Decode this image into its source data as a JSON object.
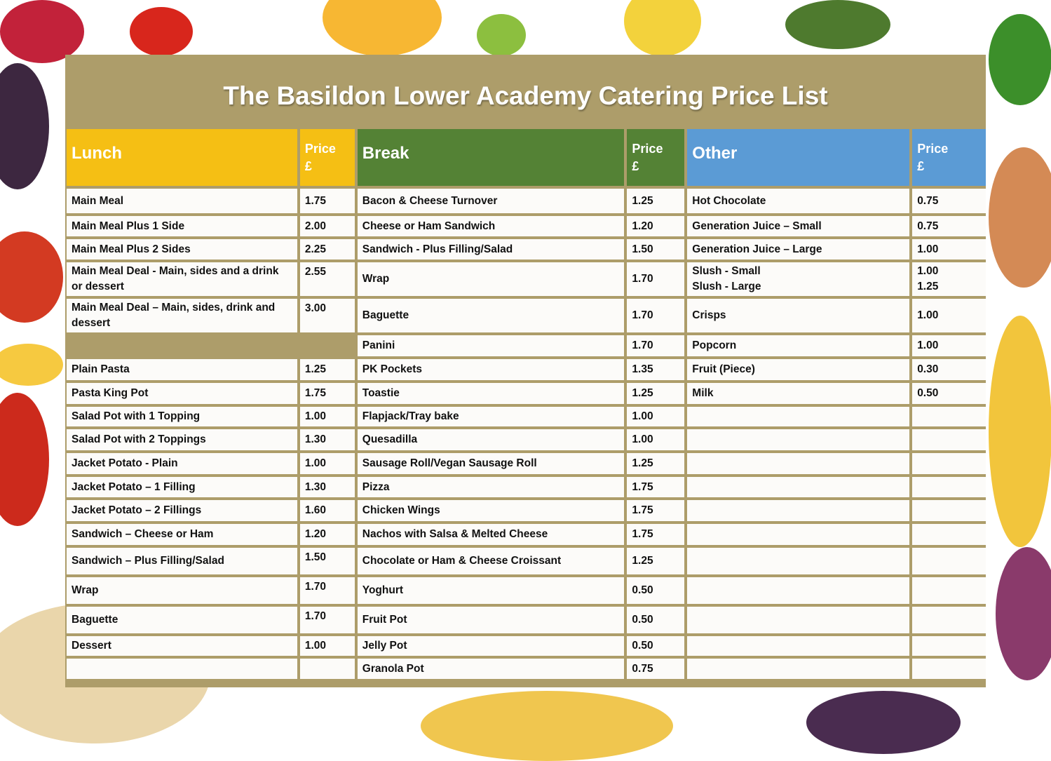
{
  "title": "The Basildon Lower Academy Catering Price List",
  "colors": {
    "frame": "#ad9d6a",
    "lunch": "#f5bf14",
    "break": "#548235",
    "other": "#5b9bd5"
  },
  "headers": {
    "lunch": "Lunch",
    "break": "Break",
    "other": "Other",
    "price_line1": "Price",
    "price_line2": "£"
  },
  "lunch": [
    {
      "name": "Main Meal",
      "price": "1.75"
    },
    {
      "name": "Main Meal Plus 1 Side",
      "price": "2.00"
    },
    {
      "name": "Main Meal Plus 2 Sides",
      "price": "2.25"
    },
    {
      "name": "Main Meal Deal - Main, sides and a drink or dessert",
      "price": "2.55"
    },
    {
      "name": "Main Meal Deal – Main, sides, drink and dessert",
      "price": "3.00"
    },
    {
      "name": "",
      "price": ""
    },
    {
      "name": "Plain Pasta",
      "price": "1.25"
    },
    {
      "name": "Pasta King Pot",
      "price": "1.75"
    },
    {
      "name": "Salad Pot with 1 Topping",
      "price": "1.00"
    },
    {
      "name": "Salad Pot with 2 Toppings",
      "price": "1.30"
    },
    {
      "name": "Jacket Potato - Plain",
      "price": "1.00"
    },
    {
      "name": "Jacket Potato – 1 Filling",
      "price": "1.30"
    },
    {
      "name": "Jacket Potato – 2 Fillings",
      "price": "1.60"
    },
    {
      "name": "Sandwich – Cheese or Ham",
      "price": "1.20"
    },
    {
      "name": "Sandwich – Plus Filling/Salad",
      "price": "1.50"
    },
    {
      "name": "Wrap",
      "price": "1.70"
    },
    {
      "name": "Baguette",
      "price": "1.70"
    },
    {
      "name": "Dessert",
      "price": "1.00"
    },
    {
      "name": "",
      "price": ""
    }
  ],
  "break": [
    {
      "name": "Bacon & Cheese Turnover",
      "price": "1.25"
    },
    {
      "name": "Cheese or Ham Sandwich",
      "price": "1.20"
    },
    {
      "name": "Sandwich - Plus Filling/Salad",
      "price": "1.50"
    },
    {
      "name": "Wrap",
      "price": "1.70"
    },
    {
      "name": "Baguette",
      "price": "1.70"
    },
    {
      "name": "Panini",
      "price": "1.70"
    },
    {
      "name": "PK Pockets",
      "price": "1.35"
    },
    {
      "name": "Toastie",
      "price": "1.25"
    },
    {
      "name": "Flapjack/Tray bake",
      "price": "1.00"
    },
    {
      "name": "Quesadilla",
      "price": "1.00"
    },
    {
      "name": "Sausage Roll/Vegan Sausage Roll",
      "price": "1.25"
    },
    {
      "name": "Pizza",
      "price": "1.75"
    },
    {
      "name": "Chicken Wings",
      "price": "1.75"
    },
    {
      "name": "Nachos with Salsa & Melted Cheese",
      "price": "1.75"
    },
    {
      "name": "Chocolate or Ham & Cheese Croissant",
      "price": "1.25"
    },
    {
      "name": "Yoghurt",
      "price": "0.50"
    },
    {
      "name": "Fruit Pot",
      "price": "0.50"
    },
    {
      "name": "Jelly Pot",
      "price": "0.50"
    },
    {
      "name": "Granola Pot",
      "price": "0.75"
    }
  ],
  "other": [
    {
      "name": "Hot Chocolate",
      "price": "0.75"
    },
    {
      "name": "Generation Juice – Small",
      "price": "0.75"
    },
    {
      "name": "Generation Juice – Large",
      "price": "1.00"
    },
    {
      "name": "Slush - Small",
      "name2": "Slush - Large",
      "price": "1.00",
      "price2": "1.25"
    },
    {
      "name": "Crisps",
      "price": "1.00"
    },
    {
      "name": "Popcorn",
      "price": "1.00"
    },
    {
      "name": "Fruit (Piece)",
      "price": "0.30"
    },
    {
      "name": "Milk",
      "price": "0.50"
    },
    {
      "name": "",
      "price": ""
    },
    {
      "name": "",
      "price": ""
    },
    {
      "name": "",
      "price": ""
    },
    {
      "name": "",
      "price": ""
    },
    {
      "name": "",
      "price": ""
    },
    {
      "name": "",
      "price": ""
    },
    {
      "name": "",
      "price": ""
    },
    {
      "name": "",
      "price": ""
    },
    {
      "name": "",
      "price": ""
    },
    {
      "name": "",
      "price": ""
    },
    {
      "name": "",
      "price": ""
    }
  ]
}
